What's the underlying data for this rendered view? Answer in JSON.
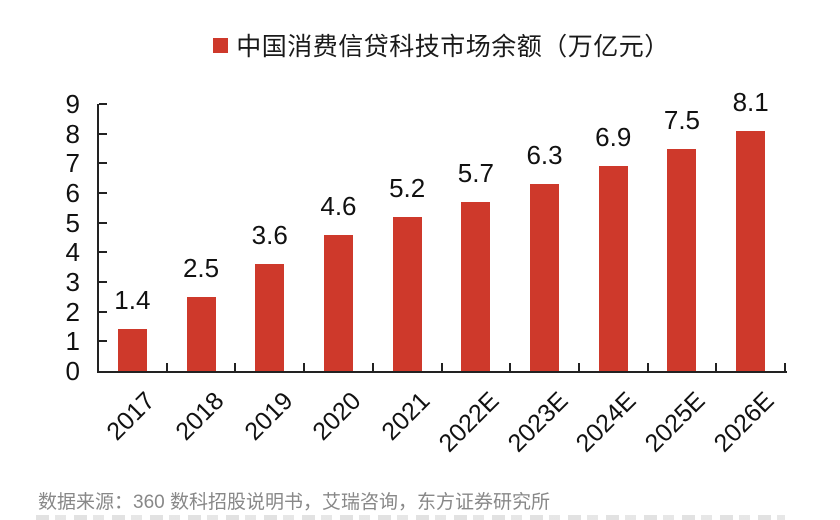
{
  "legend": {
    "label": "中国消费信贷科技市场余额（万亿元）",
    "marker_color": "#CE392B"
  },
  "chart_data": {
    "type": "bar",
    "title": "中国消费信贷科技市场余额（万亿元）",
    "unit": "万亿元",
    "categories": [
      "2017",
      "2018",
      "2019",
      "2020",
      "2021",
      "2022E",
      "2023E",
      "2024E",
      "2025E",
      "2026E"
    ],
    "values": [
      1.4,
      2.5,
      3.6,
      4.6,
      5.2,
      5.7,
      6.3,
      6.9,
      7.5,
      8.1
    ],
    "value_labels": [
      "1.4",
      "2.5",
      "3.6",
      "4.6",
      "5.2",
      "5.7",
      "6.3",
      "6.9",
      "7.5",
      "8.1"
    ],
    "yticks": [
      0,
      1,
      2,
      3,
      4,
      5,
      6,
      7,
      8,
      9
    ],
    "ylim": [
      0,
      9
    ],
    "xlabel": "",
    "ylabel": "",
    "grid": false,
    "legend_position": "top-center",
    "bar_color": "#CE392B",
    "axis_color": "#222222",
    "label_color": "#111111"
  },
  "source": {
    "text": "数据来源：360 数科招股说明书，艾瑞咨询，东方证券研究所"
  }
}
